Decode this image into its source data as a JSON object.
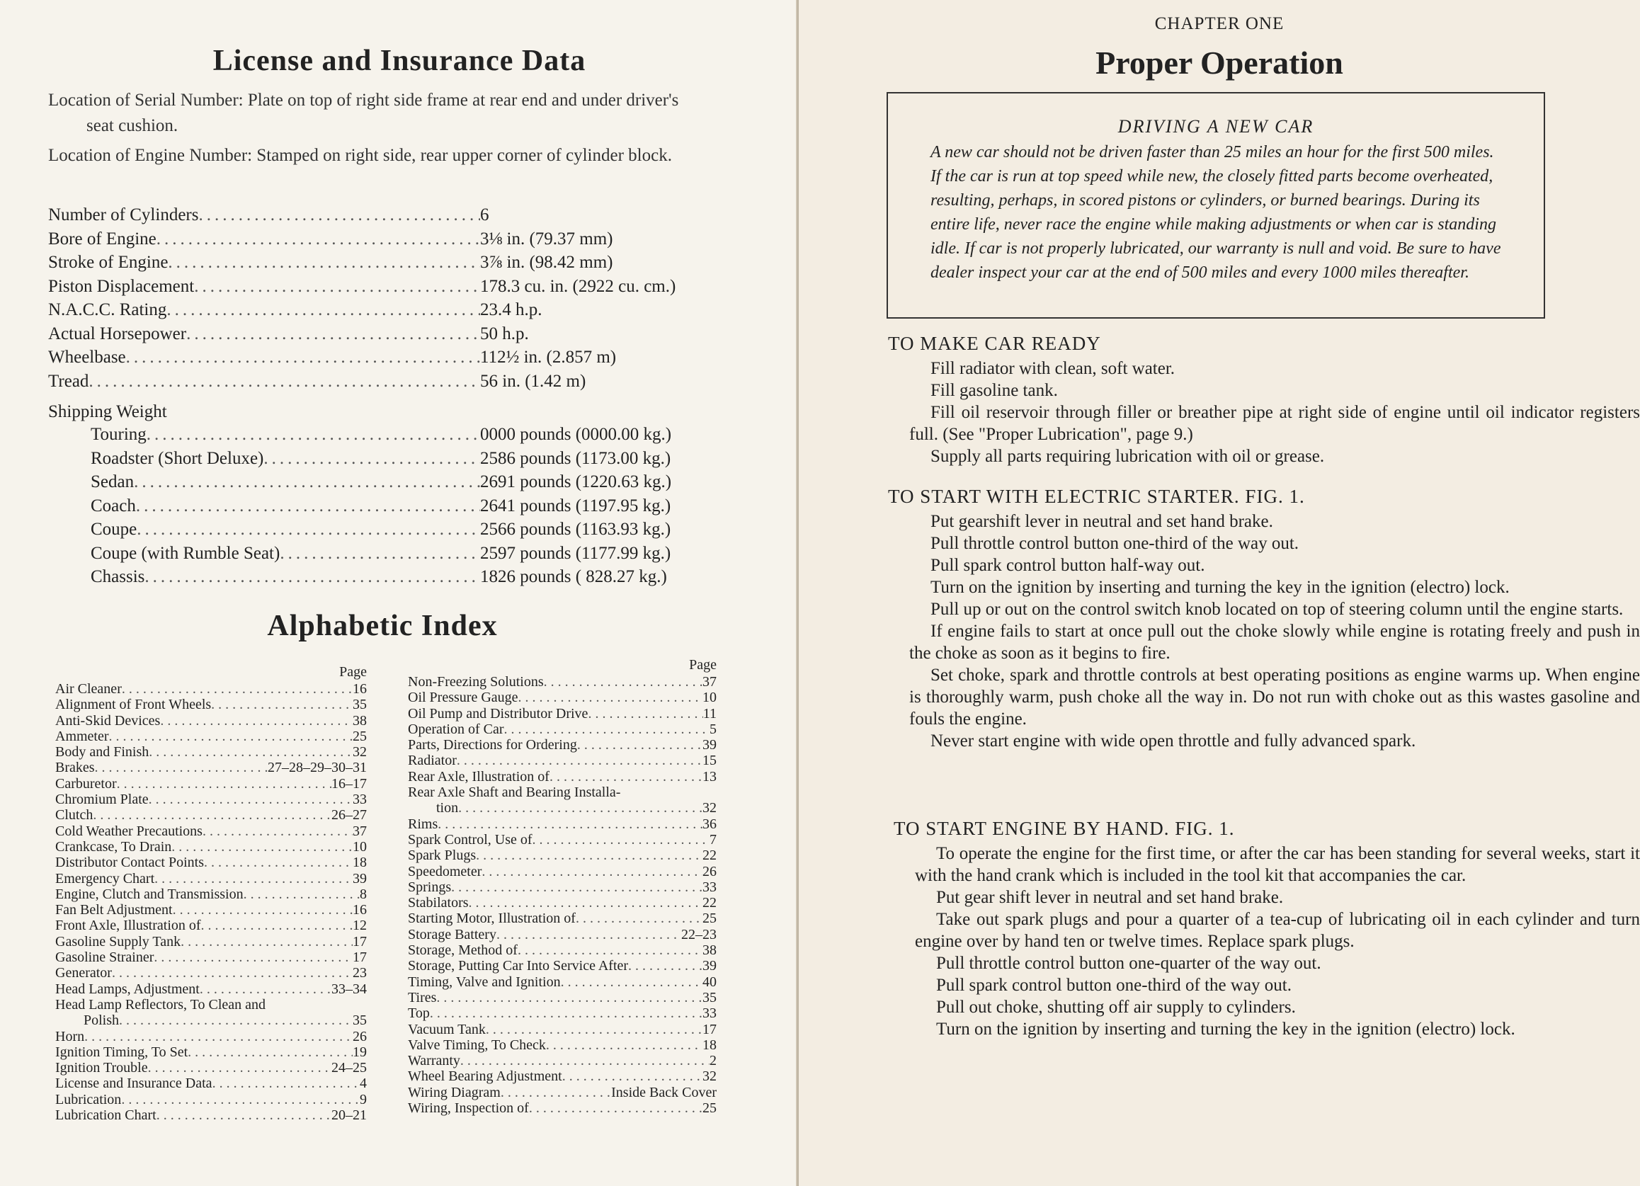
{
  "left": {
    "title": "License and Insurance Data",
    "paragraphs": [
      "Location of Serial Number: Plate on top of right side frame at rear end and under driver's seat cushion.",
      "Location of Engine Number: Stamped on right side, rear upper corner of cylinder block."
    ],
    "specs": [
      {
        "label": "Number of Cylinders",
        "value": "6"
      },
      {
        "label": "Bore of Engine",
        "value": "3⅛ in. (79.37 mm)"
      },
      {
        "label": "Stroke of Engine",
        "value": "3⅞ in. (98.42 mm)"
      },
      {
        "label": "Piston Displacement",
        "value": "178.3 cu. in. (2922 cu. cm.)"
      },
      {
        "label": "N.A.C.C. Rating",
        "value": "23.4 h.p."
      },
      {
        "label": "Actual Horsepower",
        "value": "50 h.p."
      },
      {
        "label": "Wheelbase",
        "value": "112½ in. (2.857 m)"
      },
      {
        "label": "Tread",
        "value": "56 in. (1.42 m)"
      }
    ],
    "shipping_title": "Shipping Weight",
    "shipping": [
      {
        "label": "Touring",
        "value": "0000 pounds (0000.00 kg.)"
      },
      {
        "label": "Roadster (Short Deluxe)",
        "value": "2586 pounds (1173.00 kg.)"
      },
      {
        "label": "Sedan",
        "value": "2691 pounds (1220.63 kg.)"
      },
      {
        "label": "Coach",
        "value": "2641 pounds (1197.95 kg.)"
      },
      {
        "label": "Coupe",
        "value": "2566 pounds (1163.93 kg.)"
      },
      {
        "label": "Coupe (with Rumble Seat)",
        "value": "2597 pounds (1177.99 kg.)"
      },
      {
        "label": "Chassis",
        "value": "1826 pounds ( 828.27 kg.)"
      }
    ],
    "index_title": "Alphabetic Index",
    "page_header": "Page",
    "index_col1": [
      [
        "Air Cleaner",
        "16"
      ],
      [
        "Alignment of Front Wheels",
        "35"
      ],
      [
        "Anti-Skid Devices",
        "38"
      ],
      [
        "Ammeter",
        "25"
      ],
      [
        "Body and Finish",
        "32"
      ],
      [
        "Brakes",
        "27–28–29–30–31"
      ],
      [
        "Carburetor",
        "16–17"
      ],
      [
        "Chromium Plate",
        "33"
      ],
      [
        "Clutch",
        "26–27"
      ],
      [
        "Cold Weather Precautions",
        "37"
      ],
      [
        "Crankcase, To Drain",
        "10"
      ],
      [
        "Distributor Contact Points",
        "18"
      ],
      [
        "Emergency Chart",
        "39"
      ],
      [
        "Engine, Clutch and Transmission",
        "8"
      ],
      [
        "Fan Belt Adjustment",
        "16"
      ],
      [
        "Front Axle, Illustration of",
        "12"
      ],
      [
        "Gasoline Supply Tank",
        "17"
      ],
      [
        "Gasoline Strainer",
        "17"
      ],
      [
        "Generator",
        "23"
      ],
      [
        "Head Lamps, Adjustment",
        "33–34"
      ],
      [
        "Head Lamp Reflectors, To Clean and",
        ""
      ],
      [
        "Polish",
        "35"
      ],
      [
        "Horn",
        "26"
      ],
      [
        "Ignition Timing, To Set",
        "19"
      ],
      [
        "Ignition Trouble",
        "24–25"
      ],
      [
        "License and Insurance Data",
        "4"
      ],
      [
        "Lubrication",
        "9"
      ],
      [
        "Lubrication Chart",
        "20–21"
      ]
    ],
    "index_col2": [
      [
        "Non-Freezing Solutions",
        "37"
      ],
      [
        "Oil Pressure Gauge",
        "10"
      ],
      [
        "Oil Pump and Distributor Drive",
        "11"
      ],
      [
        "Operation of Car",
        "5"
      ],
      [
        "Parts, Directions for Ordering",
        "39"
      ],
      [
        "Radiator",
        "15"
      ],
      [
        "Rear Axle, Illustration of",
        "13"
      ],
      [
        "Rear Axle Shaft and Bearing Installa-",
        ""
      ],
      [
        "tion",
        "32"
      ],
      [
        "Rims",
        "36"
      ],
      [
        "Spark Control, Use of",
        "7"
      ],
      [
        "Spark Plugs",
        "22"
      ],
      [
        "Speedometer",
        "26"
      ],
      [
        "Springs",
        "33"
      ],
      [
        "Stabilators",
        "22"
      ],
      [
        "Starting Motor, Illustration of",
        "25"
      ],
      [
        "Storage Battery",
        "22–23"
      ],
      [
        "Storage, Method of",
        "38"
      ],
      [
        "Storage, Putting Car Into Service After",
        "39"
      ],
      [
        "Timing, Valve and Ignition",
        "40"
      ],
      [
        "Tires",
        "35"
      ],
      [
        "Top",
        "33"
      ],
      [
        "Vacuum Tank",
        "17"
      ],
      [
        "Valve Timing, To Check",
        "18"
      ],
      [
        "Warranty",
        "2"
      ],
      [
        "Wheel Bearing Adjustment",
        "32"
      ],
      [
        "Wiring Diagram",
        "Inside Back Cover"
      ],
      [
        "Wiring, Inspection of",
        "25"
      ]
    ]
  },
  "right": {
    "chapter": "CHAPTER ONE",
    "title": "Proper Operation",
    "box_title": "DRIVING A NEW CAR",
    "box_text": "A new car should not be driven faster than 25 miles an hour for the first 500 miles. If the car is run at top speed while new, the closely fitted parts become overheated, resulting, perhaps, in scored pistons or cylinders, or burned bearings. During its entire life, never race the engine while making adjustments or when car is standing idle. If car is not properly lubricated, our warranty is null and void. Be sure to have dealer inspect your car at the end of 500 miles and every 1000 miles thereafter.",
    "sections": [
      {
        "heading": "TO MAKE CAR READY",
        "paras": [
          "Fill radiator with clean, soft water.",
          "Fill gasoline tank.",
          "Fill oil reservoir through filler or breather pipe at right side of engine until oil indicator registers full. (See \"Proper Lubrication\", page 9.)",
          "Supply all parts requiring lubrication with oil or grease."
        ]
      },
      {
        "heading": "TO START WITH ELECTRIC STARTER.  FIG. 1.",
        "paras": [
          "Put gearshift lever in neutral and set hand brake.",
          "Pull throttle control button one-third of the way out.",
          "Pull spark control button half-way out.",
          "Turn on the ignition by inserting and turning the key in the ignition (electro) lock.",
          "Pull up or out on the control switch knob located on top of steering column until the engine starts.",
          "If engine fails to start at once pull out the choke slowly while engine is rotating freely and push in the choke as soon as it begins to fire.",
          "Set choke, spark and throttle controls at best operating positions as engine warms up. When engine is thoroughly warm, push choke all the way in. Do not run with choke out as this wastes gasoline and fouls the engine.",
          "Never start engine with wide open throttle and fully advanced spark."
        ]
      },
      {
        "heading": "TO START ENGINE BY HAND.  FIG. 1.",
        "paras": [
          "To operate the engine for the first time, or after the car has been standing for several weeks, start it with the hand crank which is included in the tool kit that accompanies the car.",
          "Put gear shift lever in neutral and set hand brake.",
          "Take out spark plugs and pour a quarter of a tea-cup of lubricating oil in each cylinder and turn engine over by hand ten or twelve times. Replace spark plugs.",
          "Pull throttle control button one-quarter of the way out.",
          "Pull spark control button one-third of the way out.",
          "Pull out choke, shutting off air supply to cylinders.",
          "Turn on the ignition by inserting and turning the key in the ignition (electro) lock."
        ]
      }
    ]
  }
}
